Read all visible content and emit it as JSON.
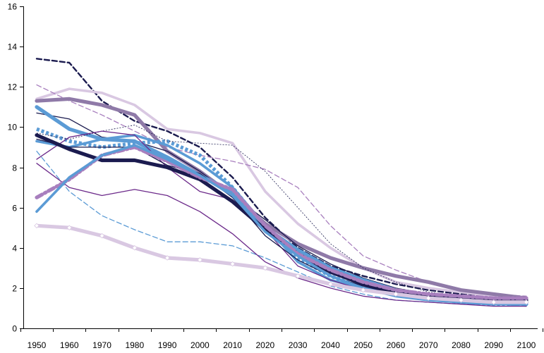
{
  "chart_data": {
    "type": "line",
    "title": "",
    "xlabel": "",
    "ylabel": "",
    "x": [
      1950,
      1960,
      1970,
      1980,
      1990,
      2000,
      2010,
      2020,
      2030,
      2040,
      2050,
      2060,
      2070,
      2080,
      2090,
      2100
    ],
    "x_ticks": [
      "1950",
      "1960",
      "1970",
      "1980",
      "1990",
      "2000",
      "2010",
      "2020",
      "2030",
      "2040",
      "2050",
      "2060",
      "2070",
      "2080",
      "2090",
      "2100"
    ],
    "y_ticks": [
      "0",
      "2",
      "4",
      "6",
      "8",
      "10",
      "12",
      "14",
      "16"
    ],
    "ylim": [
      0,
      16
    ],
    "grid": false,
    "legend": "none",
    "series": [
      {
        "color": "#1b1b4f",
        "style": "dashed",
        "weight": "medium",
        "values": [
          13.4,
          13.2,
          11.3,
          10.3,
          9.8,
          9.0,
          7.5,
          5.5,
          4.0,
          3.1,
          2.6,
          2.2,
          1.9,
          1.7,
          1.6,
          1.5
        ]
      },
      {
        "color": "#d9c8e2",
        "style": "solid",
        "weight": "thick",
        "values": [
          11.4,
          11.9,
          11.7,
          11.1,
          9.9,
          9.7,
          9.2,
          6.8,
          5.2,
          4.0,
          3.0,
          2.3,
          2.0,
          1.8,
          1.6,
          1.5
        ]
      },
      {
        "color": "#a87fbe",
        "style": "dashed",
        "weight": "thin",
        "values": [
          12.1,
          11.3,
          10.6,
          9.8,
          9.0,
          8.6,
          8.3,
          7.9,
          7.0,
          5.1,
          3.6,
          2.9,
          2.3,
          1.9,
          1.7,
          1.6
        ]
      },
      {
        "color": "#8f7aa8",
        "style": "solid",
        "weight": "heavy",
        "values": [
          11.3,
          11.4,
          11.1,
          10.6,
          8.8,
          7.8,
          6.6,
          5.2,
          4.2,
          3.5,
          3.0,
          2.6,
          2.3,
          1.9,
          1.7,
          1.5
        ]
      },
      {
        "color": "#1b1b4f",
        "style": "solid",
        "weight": "thin",
        "values": [
          10.7,
          10.4,
          9.5,
          9.3,
          8.8,
          7.8,
          6.6,
          5.4,
          4.1,
          3.2,
          2.5,
          2.0,
          1.7,
          1.5,
          1.4,
          1.3
        ]
      },
      {
        "color": "#5b9bd5",
        "style": "solid",
        "weight": "heavy",
        "values": [
          11.0,
          9.9,
          9.4,
          9.3,
          8.5,
          7.6,
          6.8,
          5.0,
          3.9,
          3.0,
          2.4,
          1.9,
          1.6,
          1.4,
          1.3,
          1.2
        ]
      },
      {
        "color": "#5b9bd5",
        "style": "dotted",
        "weight": "heavy",
        "values": [
          9.9,
          9.3,
          9.0,
          9.2,
          9.3,
          8.6,
          7.0,
          5.0,
          3.5,
          2.6,
          2.0,
          1.7,
          1.5,
          1.3,
          1.2,
          1.2
        ]
      },
      {
        "color": "#5b9bd5",
        "style": "solid",
        "weight": "thick",
        "values": [
          9.3,
          9.0,
          9.4,
          9.6,
          9.1,
          8.2,
          7.0,
          5.1,
          3.3,
          2.4,
          2.0,
          1.7,
          1.5,
          1.3,
          1.2,
          1.2
        ]
      },
      {
        "color": "#1b1b4f",
        "style": "dotted",
        "weight": "hairline",
        "values": [
          9.7,
          9.4,
          9.8,
          10.1,
          9.3,
          9.2,
          9.1,
          7.8,
          6.0,
          4.2,
          3.0,
          2.3,
          1.8,
          1.6,
          1.5,
          1.4
        ]
      },
      {
        "color": "#6c2a8a",
        "style": "solid",
        "weight": "thin",
        "values": [
          8.4,
          9.5,
          9.8,
          9.6,
          8.0,
          6.8,
          6.4,
          4.9,
          3.1,
          2.4,
          1.9,
          1.6,
          1.4,
          1.3,
          1.2,
          1.2
        ]
      },
      {
        "color": "#1b1b4f",
        "style": "solid",
        "weight": "heavy",
        "values": [
          9.6,
          8.9,
          8.35,
          8.35,
          8.0,
          7.4,
          6.3,
          4.9,
          3.7,
          2.8,
          2.2,
          1.8,
          1.6,
          1.5,
          1.4,
          1.4
        ]
      },
      {
        "color": "#1b1b4f",
        "style": "solid",
        "weight": "thin",
        "values": [
          9.4,
          9.0,
          9.0,
          9.0,
          8.1,
          7.7,
          6.5,
          4.6,
          3.4,
          2.6,
          2.1,
          1.7,
          1.5,
          1.4,
          1.3,
          1.2
        ]
      },
      {
        "color": "#5b9bd5",
        "style": "dashed",
        "weight": "thin",
        "values": [
          8.8,
          6.8,
          5.6,
          4.9,
          4.3,
          4.3,
          4.1,
          3.5,
          2.8,
          2.1,
          1.7,
          1.4,
          1.3,
          1.2,
          1.2,
          1.1
        ]
      },
      {
        "color": "#6c2a8a",
        "style": "solid",
        "weight": "thin",
        "values": [
          8.2,
          7.0,
          6.6,
          6.9,
          6.6,
          5.8,
          4.7,
          3.3,
          2.5,
          2.0,
          1.6,
          1.4,
          1.3,
          1.2,
          1.1,
          1.1
        ]
      },
      {
        "color": "#a87fbe",
        "style": "dashdot",
        "weight": "heavy",
        "values": [
          6.5,
          7.4,
          8.6,
          9.0,
          8.3,
          7.5,
          6.9,
          5.1,
          3.7,
          2.9,
          2.3,
          1.9,
          1.7,
          1.6,
          1.5,
          1.5
        ]
      },
      {
        "color": "#5b9bd5",
        "style": "solid",
        "weight": "thick",
        "values": [
          5.8,
          7.5,
          8.6,
          9.1,
          8.4,
          7.6,
          6.6,
          4.8,
          3.6,
          2.6,
          2.0,
          1.6,
          1.4,
          1.3,
          1.2,
          1.2
        ]
      },
      {
        "color": "#d9c8e2",
        "style": "solid",
        "weight": "heavy",
        "markers": "diamond",
        "values": [
          5.1,
          5.0,
          4.6,
          4.0,
          3.5,
          3.4,
          3.2,
          3.0,
          2.6,
          2.2,
          1.9,
          1.7,
          1.5,
          1.4,
          1.3,
          1.3
        ]
      }
    ]
  }
}
